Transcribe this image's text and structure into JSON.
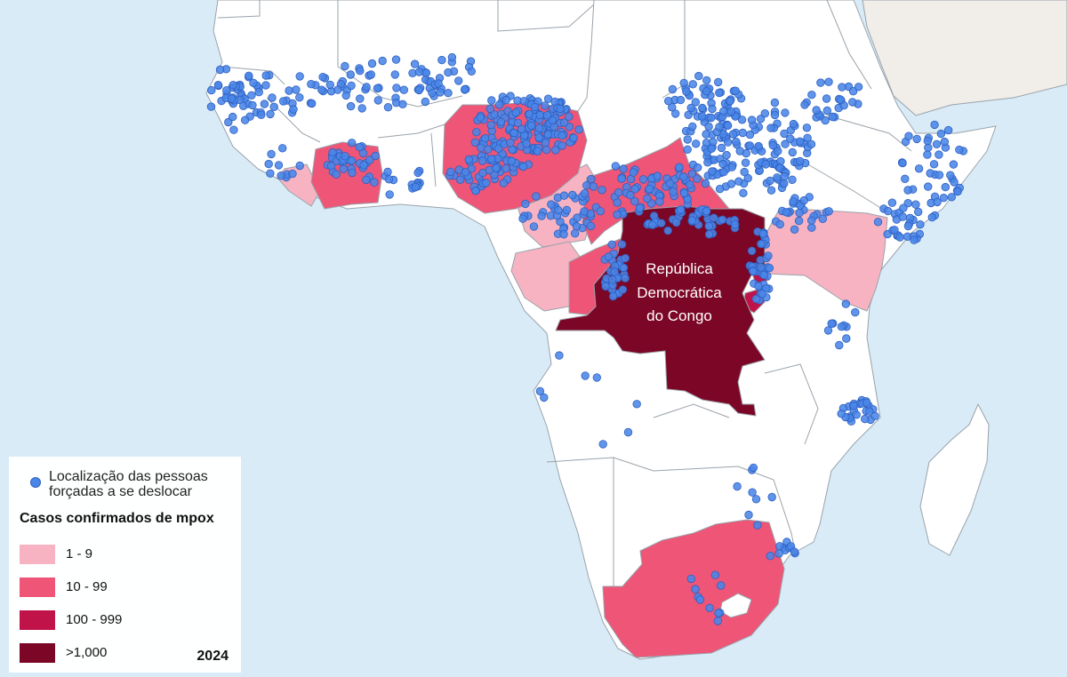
{
  "map": {
    "colors": {
      "ocean": "#d9ebf7",
      "no_cases": "#ffffff",
      "cases_1_9": "#f7b3c2",
      "cases_10_99": "#ee5577",
      "cases_100_999": "#c0134a",
      "cases_over_1000": "#7c0626",
      "displaced_dot": "#4a86e8"
    },
    "drc_label": [
      "República",
      "Democrática",
      "do Congo"
    ]
  },
  "legend": {
    "dot_label": "Localização das pessoas forçadas a se deslocar",
    "dot_label_line1": "Localização das pessoas",
    "dot_label_line2": "forçadas a se deslocar",
    "title": "Casos confirmados de mpox",
    "items": [
      {
        "label": "1 - 9",
        "color": "#f7b3c2"
      },
      {
        "label": "10 - 99",
        "color": "#ee5577"
      },
      {
        "label": "100 - 999",
        "color": "#c0134a"
      },
      {
        "label": ">1,000",
        "color": "#7c0626"
      }
    ],
    "year": "2024"
  }
}
